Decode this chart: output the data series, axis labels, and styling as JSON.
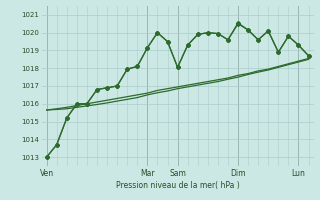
{
  "bg_color": "#cce8e4",
  "grid_color": "#aacccc",
  "line_color": "#2d6a2d",
  "marker_color": "#2d6a2d",
  "xlabel": "Pression niveau de la mer( hPa )",
  "ylim": [
    1012.5,
    1021.5
  ],
  "yticks": [
    1013,
    1014,
    1015,
    1016,
    1017,
    1018,
    1019,
    1020,
    1021
  ],
  "xtick_labels": [
    "Ven",
    "Mar",
    "Sam",
    "Dim",
    "Lun"
  ],
  "xtick_positions": [
    0,
    10,
    13,
    19,
    25
  ],
  "vline_positions": [
    0,
    10,
    13,
    19,
    25
  ],
  "n_points": 27,
  "series_wavy1": [
    1013.0,
    1013.7,
    1015.2,
    1016.0,
    1016.0,
    1016.8,
    1016.9,
    1017.0,
    1017.95,
    1018.1,
    1019.15,
    1020.0,
    1019.5,
    1018.05,
    1019.3,
    1019.9,
    1020.0,
    1019.95,
    1019.6,
    1020.5,
    1020.15,
    1019.6,
    1020.1,
    1018.9,
    1019.8,
    1019.3,
    1018.7
  ],
  "series_wavy2": [
    1013.0,
    1013.7,
    1015.2,
    1016.0,
    1016.0,
    1016.8,
    1016.9,
    1017.0,
    1017.95,
    1018.1,
    1019.15,
    1020.0,
    1019.5,
    1018.05,
    1019.3,
    1019.9,
    1020.0,
    1019.95,
    1019.6,
    1020.55,
    1020.15,
    1019.6,
    1020.1,
    1018.9,
    1019.8,
    1019.3,
    1018.7
  ],
  "series_linear1": [
    1015.65,
    1015.72,
    1015.8,
    1015.9,
    1016.0,
    1016.1,
    1016.2,
    1016.3,
    1016.4,
    1016.5,
    1016.6,
    1016.75,
    1016.85,
    1016.95,
    1017.05,
    1017.15,
    1017.25,
    1017.35,
    1017.45,
    1017.6,
    1017.7,
    1017.85,
    1017.95,
    1018.1,
    1018.25,
    1018.4,
    1018.55
  ],
  "series_linear2": [
    1015.65,
    1015.68,
    1015.72,
    1015.8,
    1015.88,
    1015.96,
    1016.05,
    1016.15,
    1016.25,
    1016.35,
    1016.5,
    1016.62,
    1016.72,
    1016.85,
    1016.95,
    1017.05,
    1017.15,
    1017.25,
    1017.38,
    1017.5,
    1017.65,
    1017.78,
    1017.9,
    1018.05,
    1018.2,
    1018.35,
    1018.5
  ]
}
